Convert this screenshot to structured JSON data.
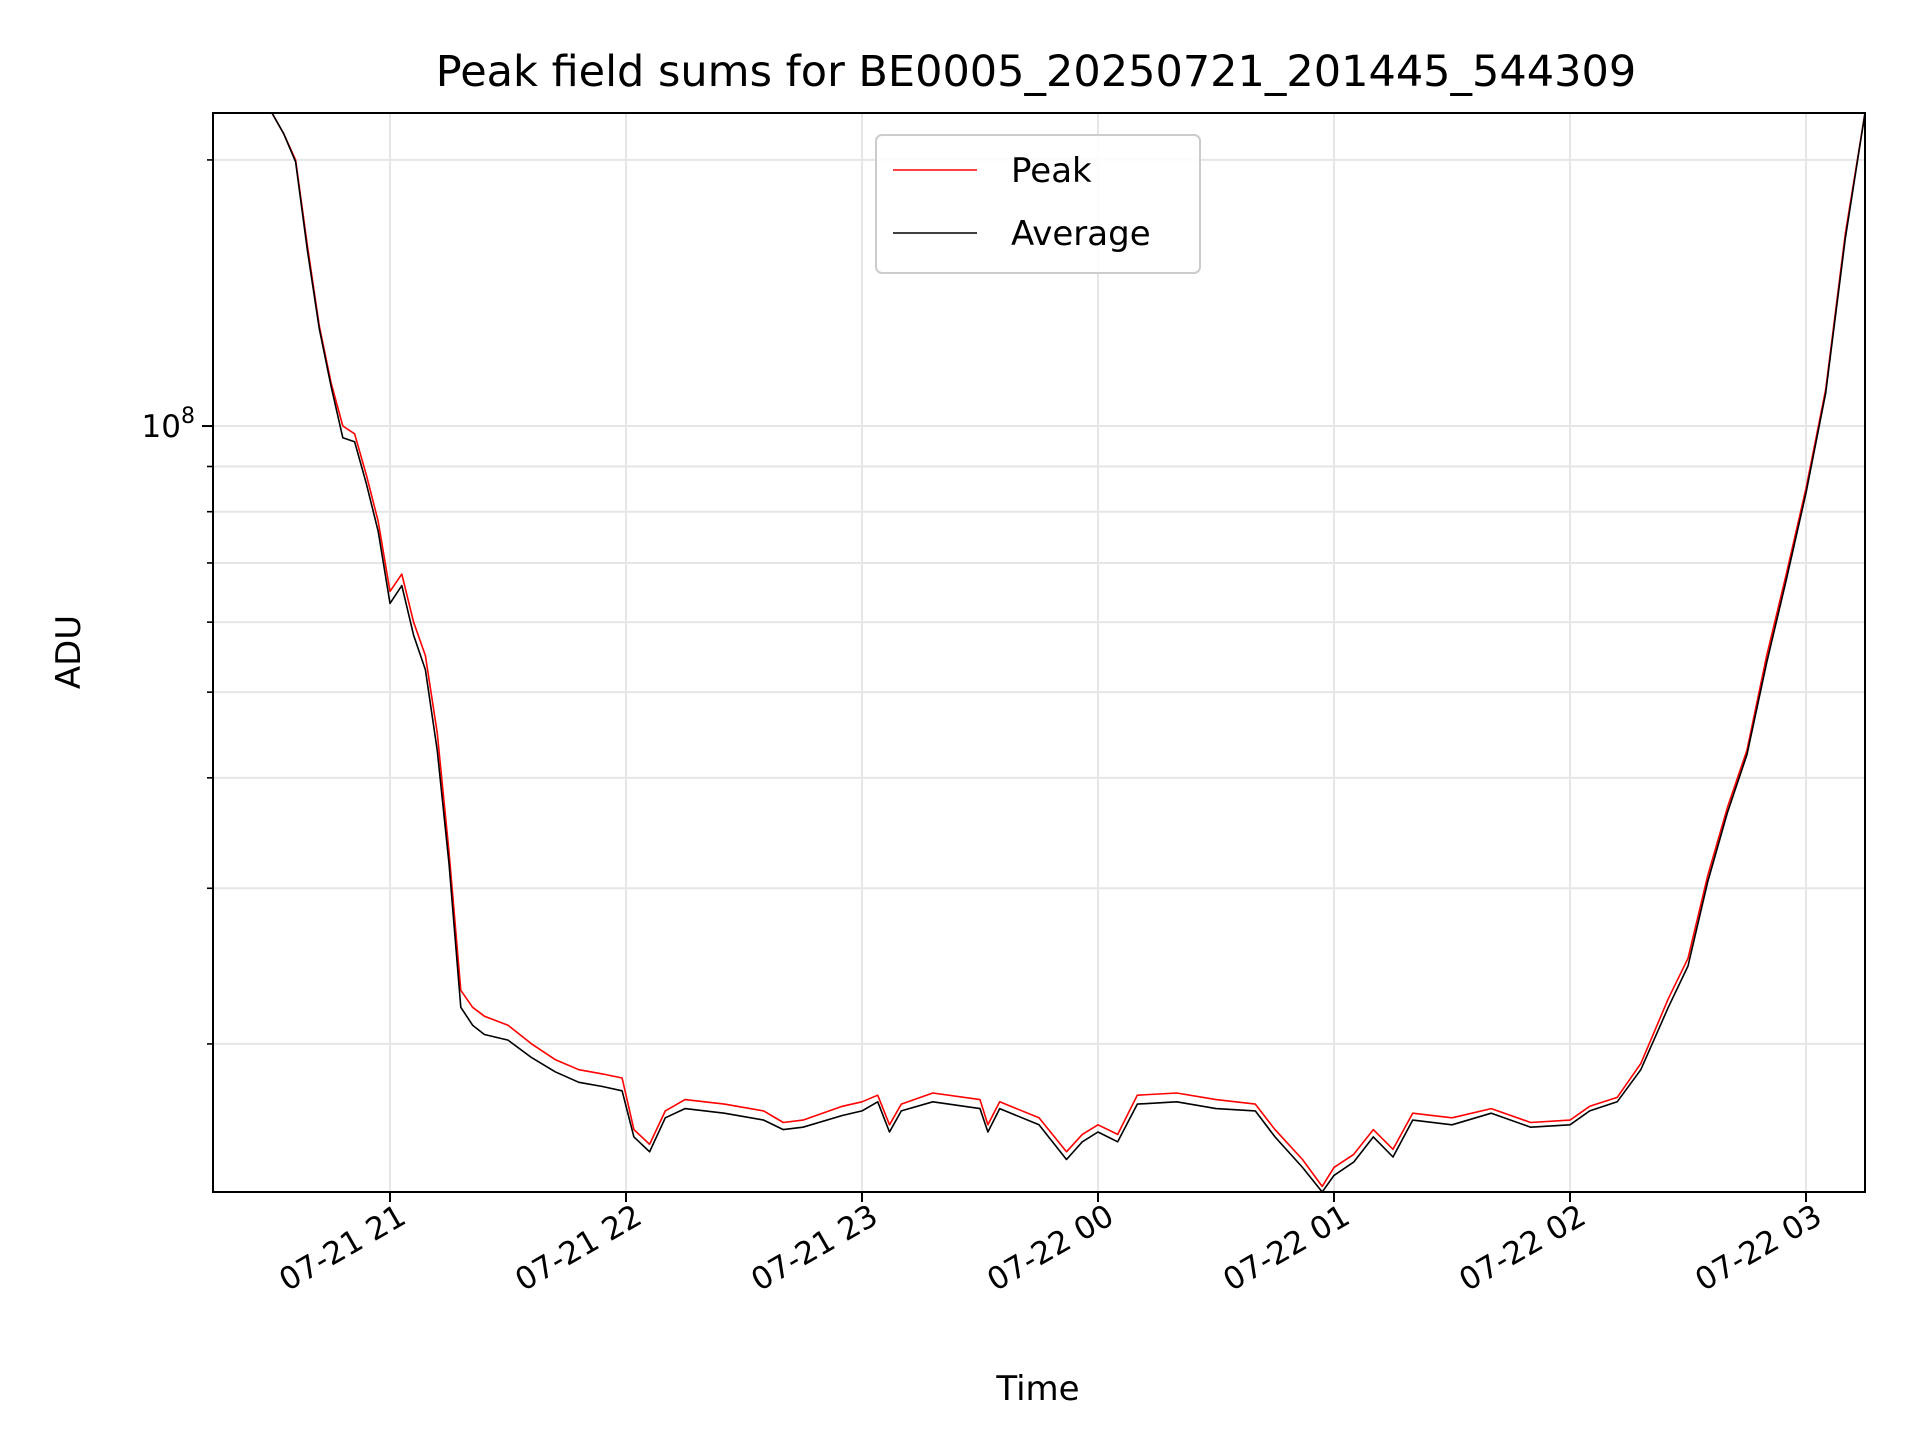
{
  "chart_data": {
    "type": "line",
    "title": "Peak field sums for BE0005_20250721_201445_544309",
    "xlabel": "Time",
    "ylabel": "ADU",
    "y_scale": "log",
    "grid": true,
    "legend_position": "top-center",
    "x_range": [
      "2025-07-21 20:15",
      "2025-07-22 03:15"
    ],
    "y_range": [
      13600000,
      226000000
    ],
    "x_ticks": [
      {
        "value": "2025-07-21 21:00",
        "label": "07-21 21"
      },
      {
        "value": "2025-07-21 22:00",
        "label": "07-21 22"
      },
      {
        "value": "2025-07-21 23:00",
        "label": "07-21 23"
      },
      {
        "value": "2025-07-22 00:00",
        "label": "07-22 00"
      },
      {
        "value": "2025-07-22 01:00",
        "label": "07-22 01"
      },
      {
        "value": "2025-07-22 02:00",
        "label": "07-22 02"
      },
      {
        "value": "2025-07-22 03:00",
        "label": "07-22 03"
      }
    ],
    "y_major_ticks": [
      {
        "value": 100000000,
        "base": "10",
        "exp": "8"
      }
    ],
    "y_minor_ticks": [
      20000000,
      30000000,
      40000000,
      50000000,
      60000000,
      70000000,
      80000000,
      90000000,
      200000000
    ],
    "series": [
      {
        "name": "Peak",
        "color": "#ff0000",
        "points": [
          [
            "2025-07-21 20:30",
            226000000
          ],
          [
            "2025-07-21 20:33",
            214000000
          ],
          [
            "2025-07-21 20:36",
            200000000
          ],
          [
            "2025-07-21 20:39",
            160000000
          ],
          [
            "2025-07-21 20:42",
            130000000
          ],
          [
            "2025-07-21 20:45",
            112000000
          ],
          [
            "2025-07-21 20:48",
            100000000
          ],
          [
            "2025-07-21 20:51",
            98000000
          ],
          [
            "2025-07-21 20:54",
            88000000
          ],
          [
            "2025-07-21 20:57",
            78000000
          ],
          [
            "2025-07-21 21:00",
            65000000
          ],
          [
            "2025-07-21 21:03",
            68000000
          ],
          [
            "2025-07-21 21:06",
            60000000
          ],
          [
            "2025-07-21 21:09",
            55000000
          ],
          [
            "2025-07-21 21:12",
            45000000
          ],
          [
            "2025-07-21 21:15",
            33000000
          ],
          [
            "2025-07-21 21:18",
            23000000
          ],
          [
            "2025-07-21 21:21",
            22000000
          ],
          [
            "2025-07-21 21:24",
            21500000
          ],
          [
            "2025-07-21 21:30",
            21000000
          ],
          [
            "2025-07-21 21:36",
            20000000
          ],
          [
            "2025-07-21 21:42",
            19200000
          ],
          [
            "2025-07-21 21:48",
            18700000
          ],
          [
            "2025-07-21 21:54",
            18500000
          ],
          [
            "2025-07-21 21:59",
            18300000
          ],
          [
            "2025-07-21 22:02",
            16000000
          ],
          [
            "2025-07-21 22:06",
            15400000
          ],
          [
            "2025-07-21 22:10",
            16800000
          ],
          [
            "2025-07-21 22:15",
            17300000
          ],
          [
            "2025-07-21 22:25",
            17100000
          ],
          [
            "2025-07-21 22:35",
            16800000
          ],
          [
            "2025-07-21 22:40",
            16300000
          ],
          [
            "2025-07-21 22:45",
            16400000
          ],
          [
            "2025-07-21 22:55",
            17000000
          ],
          [
            "2025-07-21 23:00",
            17200000
          ],
          [
            "2025-07-21 23:04",
            17500000
          ],
          [
            "2025-07-21 23:07",
            16200000
          ],
          [
            "2025-07-21 23:10",
            17100000
          ],
          [
            "2025-07-21 23:18",
            17600000
          ],
          [
            "2025-07-21 23:30",
            17300000
          ],
          [
            "2025-07-21 23:32",
            16200000
          ],
          [
            "2025-07-21 23:35",
            17200000
          ],
          [
            "2025-07-21 23:45",
            16500000
          ],
          [
            "2025-07-21 23:52",
            15100000
          ],
          [
            "2025-07-21 23:56",
            15800000
          ],
          [
            "2025-07-22 00:00",
            16200000
          ],
          [
            "2025-07-22 00:05",
            15800000
          ],
          [
            "2025-07-22 00:10",
            17500000
          ],
          [
            "2025-07-22 00:20",
            17600000
          ],
          [
            "2025-07-22 00:30",
            17300000
          ],
          [
            "2025-07-22 00:40",
            17100000
          ],
          [
            "2025-07-22 00:45",
            16000000
          ],
          [
            "2025-07-22 00:52",
            14800000
          ],
          [
            "2025-07-22 00:57",
            13800000
          ],
          [
            "2025-07-22 01:00",
            14500000
          ],
          [
            "2025-07-22 01:05",
            15000000
          ],
          [
            "2025-07-22 01:10",
            16000000
          ],
          [
            "2025-07-22 01:15",
            15200000
          ],
          [
            "2025-07-22 01:20",
            16700000
          ],
          [
            "2025-07-22 01:30",
            16500000
          ],
          [
            "2025-07-22 01:40",
            16900000
          ],
          [
            "2025-07-22 01:50",
            16300000
          ],
          [
            "2025-07-22 02:00",
            16400000
          ],
          [
            "2025-07-22 02:05",
            17000000
          ],
          [
            "2025-07-22 02:12",
            17400000
          ],
          [
            "2025-07-22 02:18",
            19000000
          ],
          [
            "2025-07-22 02:25",
            22500000
          ],
          [
            "2025-07-22 02:30",
            25000000
          ],
          [
            "2025-07-22 02:35",
            31000000
          ],
          [
            "2025-07-22 02:40",
            37000000
          ],
          [
            "2025-07-22 02:45",
            43000000
          ],
          [
            "2025-07-22 02:50",
            55000000
          ],
          [
            "2025-07-22 02:55",
            68000000
          ],
          [
            "2025-07-22 03:00",
            85000000
          ],
          [
            "2025-07-22 03:05",
            110000000
          ],
          [
            "2025-07-22 03:10",
            165000000
          ],
          [
            "2025-07-22 03:15",
            226000000
          ]
        ]
      },
      {
        "name": "Average",
        "color": "#000000",
        "points": [
          [
            "2025-07-21 20:30",
            226000000
          ],
          [
            "2025-07-21 20:33",
            214000000
          ],
          [
            "2025-07-21 20:36",
            199000000
          ],
          [
            "2025-07-21 20:39",
            158000000
          ],
          [
            "2025-07-21 20:42",
            129000000
          ],
          [
            "2025-07-21 20:45",
            111000000
          ],
          [
            "2025-07-21 20:48",
            97000000
          ],
          [
            "2025-07-21 20:51",
            96000000
          ],
          [
            "2025-07-21 20:54",
            86000000
          ],
          [
            "2025-07-21 20:57",
            76000000
          ],
          [
            "2025-07-21 21:00",
            63000000
          ],
          [
            "2025-07-21 21:03",
            66000000
          ],
          [
            "2025-07-21 21:06",
            58000000
          ],
          [
            "2025-07-21 21:09",
            53000000
          ],
          [
            "2025-07-21 21:12",
            43000000
          ],
          [
            "2025-07-21 21:15",
            32000000
          ],
          [
            "2025-07-21 21:18",
            22000000
          ],
          [
            "2025-07-21 21:21",
            21000000
          ],
          [
            "2025-07-21 21:24",
            20500000
          ],
          [
            "2025-07-21 21:30",
            20200000
          ],
          [
            "2025-07-21 21:36",
            19300000
          ],
          [
            "2025-07-21 21:42",
            18600000
          ],
          [
            "2025-07-21 21:48",
            18100000
          ],
          [
            "2025-07-21 21:54",
            17900000
          ],
          [
            "2025-07-21 21:59",
            17700000
          ],
          [
            "2025-07-21 22:02",
            15700000
          ],
          [
            "2025-07-21 22:06",
            15100000
          ],
          [
            "2025-07-21 22:10",
            16500000
          ],
          [
            "2025-07-21 22:15",
            16900000
          ],
          [
            "2025-07-21 22:25",
            16700000
          ],
          [
            "2025-07-21 22:35",
            16400000
          ],
          [
            "2025-07-21 22:40",
            16000000
          ],
          [
            "2025-07-21 22:45",
            16100000
          ],
          [
            "2025-07-21 22:55",
            16600000
          ],
          [
            "2025-07-21 23:00",
            16800000
          ],
          [
            "2025-07-21 23:04",
            17200000
          ],
          [
            "2025-07-21 23:07",
            15900000
          ],
          [
            "2025-07-21 23:10",
            16800000
          ],
          [
            "2025-07-21 23:18",
            17200000
          ],
          [
            "2025-07-21 23:30",
            16900000
          ],
          [
            "2025-07-21 23:32",
            15900000
          ],
          [
            "2025-07-21 23:35",
            16900000
          ],
          [
            "2025-07-21 23:45",
            16200000
          ],
          [
            "2025-07-21 23:52",
            14800000
          ],
          [
            "2025-07-21 23:56",
            15500000
          ],
          [
            "2025-07-22 00:00",
            15900000
          ],
          [
            "2025-07-22 00:05",
            15500000
          ],
          [
            "2025-07-22 00:10",
            17100000
          ],
          [
            "2025-07-22 00:20",
            17200000
          ],
          [
            "2025-07-22 00:30",
            16900000
          ],
          [
            "2025-07-22 00:40",
            16800000
          ],
          [
            "2025-07-22 00:45",
            15700000
          ],
          [
            "2025-07-22 00:52",
            14500000
          ],
          [
            "2025-07-22 00:57",
            13600000
          ],
          [
            "2025-07-22 01:00",
            14200000
          ],
          [
            "2025-07-22 01:05",
            14700000
          ],
          [
            "2025-07-22 01:10",
            15700000
          ],
          [
            "2025-07-22 01:15",
            14900000
          ],
          [
            "2025-07-22 01:20",
            16400000
          ],
          [
            "2025-07-22 01:30",
            16200000
          ],
          [
            "2025-07-22 01:40",
            16700000
          ],
          [
            "2025-07-22 01:50",
            16100000
          ],
          [
            "2025-07-22 02:00",
            16200000
          ],
          [
            "2025-07-22 02:05",
            16800000
          ],
          [
            "2025-07-22 02:12",
            17200000
          ],
          [
            "2025-07-22 02:18",
            18700000
          ],
          [
            "2025-07-22 02:25",
            22000000
          ],
          [
            "2025-07-22 02:30",
            24500000
          ],
          [
            "2025-07-22 02:35",
            30500000
          ],
          [
            "2025-07-22 02:40",
            36500000
          ],
          [
            "2025-07-22 02:45",
            42500000
          ],
          [
            "2025-07-22 02:50",
            54000000
          ],
          [
            "2025-07-22 02:55",
            67000000
          ],
          [
            "2025-07-22 03:00",
            84000000
          ],
          [
            "2025-07-22 03:05",
            109000000
          ],
          [
            "2025-07-22 03:10",
            163000000
          ],
          [
            "2025-07-22 03:15",
            226000000
          ]
        ]
      }
    ]
  }
}
